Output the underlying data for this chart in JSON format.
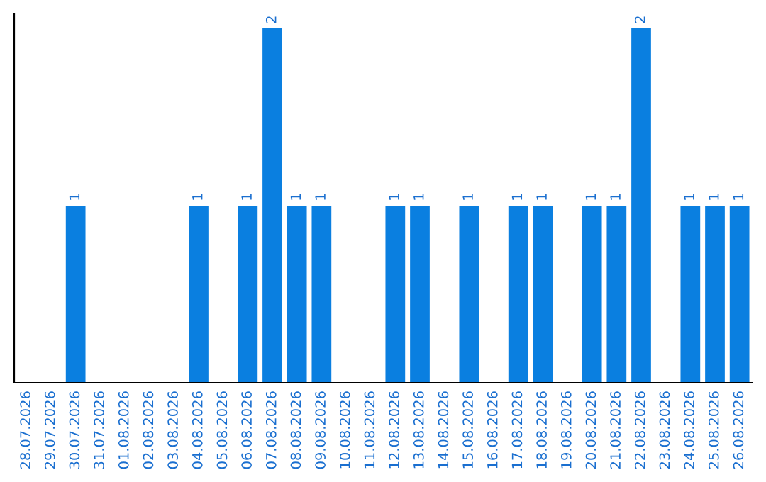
{
  "chart_data": {
    "type": "bar",
    "categories": [
      "28.07.2026",
      "29.07.2026",
      "30.07.2026",
      "31.07.2026",
      "01.08.2026",
      "02.08.2026",
      "03.08.2026",
      "04.08.2026",
      "05.08.2026",
      "06.08.2026",
      "07.08.2026",
      "08.08.2026",
      "09.08.2026",
      "10.08.2026",
      "11.08.2026",
      "12.08.2026",
      "13.08.2026",
      "14.08.2026",
      "15.08.2026",
      "16.08.2026",
      "17.08.2026",
      "18.08.2026",
      "19.08.2026",
      "20.08.2026",
      "21.08.2026",
      "22.08.2026",
      "23.08.2026",
      "24.08.2026",
      "25.08.2026",
      "26.08.2026"
    ],
    "values": [
      null,
      null,
      1,
      null,
      null,
      null,
      null,
      1,
      null,
      1,
      2,
      1,
      1,
      null,
      null,
      1,
      1,
      null,
      1,
      null,
      1,
      1,
      null,
      1,
      1,
      2,
      null,
      1,
      1,
      1
    ],
    "color": "#0a7fe0",
    "data_labels": true,
    "tick_labels": "x",
    "grid": false,
    "legend": false
  }
}
